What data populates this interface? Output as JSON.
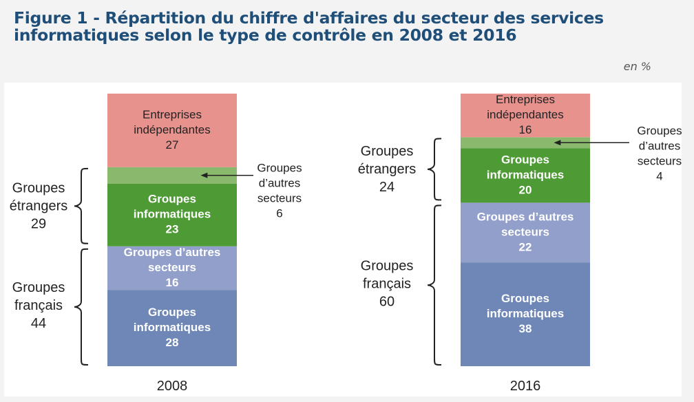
{
  "title": "Figure 1 - Répartition du chiffre d'affaires du secteur des services informatiques selon le type de contrôle en 2008 et 2016",
  "unit": "en %",
  "colors": {
    "entreprises_independantes": "#e8928e",
    "groupes_autres_secteurs_etrangers": "#8ab86d",
    "groupes_informatiques_etrangers": "#4e9a35",
    "groupes_autres_secteurs_francais": "#919fca",
    "groupes_informatiques_francais": "#6f87b7",
    "bracket": "#222222"
  },
  "chart_data": {
    "type": "bar",
    "stacked": true,
    "ylim": [
      0,
      100
    ],
    "categories": [
      "2008",
      "2016"
    ],
    "series": [
      {
        "key": "gi_fr",
        "name": "Groupes informatiques",
        "group": "Groupes français",
        "color_key": "groupes_informatiques_francais",
        "values": [
          28,
          38
        ]
      },
      {
        "key": "gas_fr",
        "name": "Groupes d’autres secteurs",
        "group": "Groupes français",
        "color_key": "groupes_autres_secteurs_francais",
        "values": [
          16,
          22
        ]
      },
      {
        "key": "gi_et",
        "name": "Groupes informatiques",
        "group": "Groupes étrangers",
        "color_key": "groupes_informatiques_etrangers",
        "values": [
          23,
          20
        ]
      },
      {
        "key": "gas_et",
        "name": "Groupes d’autres secteurs",
        "group": "Groupes étrangers",
        "color_key": "groupes_autres_secteurs_etrangers",
        "values": [
          6,
          4
        ]
      },
      {
        "key": "ei",
        "name": "Entreprises indépendantes",
        "color_key": "entreprises_independantes",
        "values": [
          27,
          16
        ]
      }
    ],
    "segment_labels": {
      "2008": {
        "ei": [
          "Entreprises",
          "indépendantes",
          "27"
        ],
        "gi_et": [
          "Groupes",
          "informatiques",
          "23"
        ],
        "gas_fr": [
          "Groupes d’autres",
          "secteurs",
          "16"
        ],
        "gi_fr": [
          "Groupes",
          "informatiques",
          "28"
        ]
      },
      "2016": {
        "ei": [
          "Entreprises",
          "indépendantes",
          "16"
        ],
        "gi_et": [
          "Groupes",
          "informatiques",
          "20"
        ],
        "gas_fr": [
          "Groupes d’autres",
          "secteurs",
          "22"
        ],
        "gi_fr": [
          "Groupes",
          "informatiques",
          "38"
        ]
      }
    },
    "annotations": {
      "2008": [
        "Groupes",
        "d’autres",
        "secteurs",
        "6"
      ],
      "2016": [
        "Groupes",
        "d’autres",
        "secteurs",
        "4"
      ]
    },
    "group_totals": {
      "2008": {
        "etrangers": [
          "Groupes",
          "étrangers",
          "29"
        ],
        "francais": [
          "Groupes",
          "français",
          "44"
        ]
      },
      "2016": {
        "etrangers": [
          "Groupes",
          "étrangers",
          "24"
        ],
        "francais": [
          "Groupes",
          "français",
          "60"
        ]
      }
    }
  }
}
